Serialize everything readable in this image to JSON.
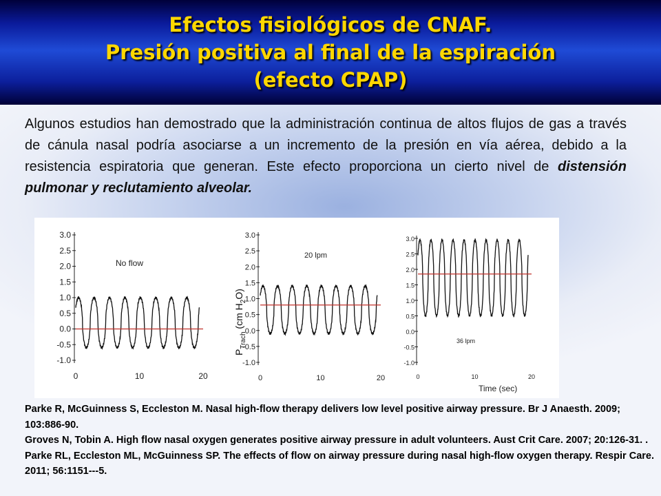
{
  "title": {
    "line1": "Efectos fisiológicos de CNAF.",
    "line2": "Presión positiva al final de la espiración",
    "line3": "(efecto CPAP)"
  },
  "intro": {
    "text": "Algunos estudios han demostrado que la administración continua de altos flujos de gas a través de cánula nasal podría asociarse a un incremento de la presión en vía aérea, debido a la resistencia espiratoria que generan. Este efecto proporciona un cierto nivel de ",
    "emphasis": "distensión pulmonar y reclutamiento alveolar."
  },
  "chart_data": [
    {
      "type": "line",
      "annotation": "No flow",
      "y_ticks": [
        "3.0",
        "2.5",
        "2.0",
        "1.5",
        "1.0",
        "0.5",
        "0.0",
        "-0.5",
        "-1.0"
      ],
      "x_ticks": [
        "0",
        "10",
        "20"
      ],
      "ylim": [
        -1.0,
        3.0
      ],
      "xlim": [
        0,
        20
      ],
      "mean_line": 0.0,
      "series": [
        {
          "trough": -0.6,
          "peak": 1.0,
          "cycles": 8
        }
      ]
    },
    {
      "type": "line",
      "annotation": "20 lpm",
      "ylabel_main": "P",
      "ylabel_sub": "Trach",
      "ylabel_unit": "(cm H",
      "ylabel_unit_sub": "2",
      "ylabel_unit_end": "O)",
      "y_ticks": [
        "3.0",
        "2.5",
        "2.0",
        "1.5",
        "1.0",
        "0.5",
        "0.0",
        "-0.5",
        "-1.0"
      ],
      "x_ticks": [
        "0",
        "10",
        "20"
      ],
      "ylim": [
        -1.0,
        3.0
      ],
      "xlim": [
        0,
        20
      ],
      "mean_line": 0.8,
      "series": [
        {
          "trough": -0.1,
          "peak": 1.4,
          "cycles": 8
        }
      ]
    },
    {
      "type": "line",
      "annotation": "36 lpm",
      "xlabel": "Time (sec)",
      "y_ticks": [
        "3.0",
        "2.5",
        "2.0",
        "1.5",
        "1.0",
        "0.5",
        "0.0",
        "-0.5",
        "-1.0"
      ],
      "x_ticks": [
        "0",
        "10",
        "20"
      ],
      "ylim": [
        -1.0,
        3.0
      ],
      "xlim": [
        0,
        20
      ],
      "mean_line": 1.85,
      "series": [
        {
          "trough": 0.5,
          "peak": 2.95,
          "cycles": 10
        }
      ]
    }
  ],
  "references": [
    "Parke R, McGuinness S, Eccleston M. Nasal high-flow therapy delivers low level positive airway pressure. Br J Anaesth. 2009; 103:886-90.",
    "Groves N, Tobin A. High flow nasal oxygen generates positive airway pressure in adult volunteers. Aust Crit Care. 2007; 20:126-31. .",
    "Parke RL, Eccleston ML, McGuinness SP. The effects of flow on airway pressure during nasal high-flow oxygen therapy. Respir Care. 2011; 56:1151---5."
  ]
}
